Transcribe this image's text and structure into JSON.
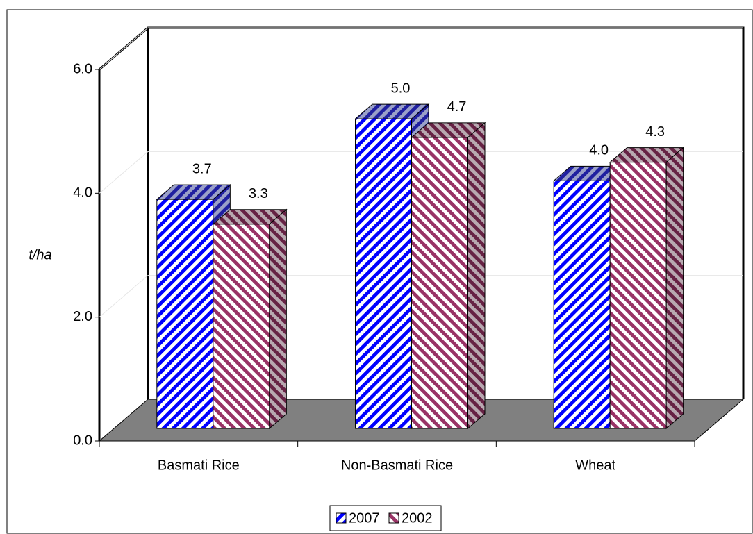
{
  "chart_data": {
    "type": "bar3d",
    "y_label": "t/ha",
    "categories": [
      "Basmati Rice",
      "Non-Basmati Rice",
      "Wheat"
    ],
    "series": [
      {
        "name": "2007",
        "color": "#0000ff",
        "values": [
          3.7,
          5.0,
          4.0
        ],
        "value_labels": [
          "3.7",
          "5.0",
          "4.0"
        ]
      },
      {
        "name": "2002",
        "color": "#993366",
        "values": [
          3.3,
          4.7,
          4.3
        ],
        "value_labels": [
          "3.3",
          "4.7",
          "4.3"
        ]
      }
    ],
    "ylim": [
      0,
      6
    ],
    "yticks": [
      {
        "value": 0,
        "label": "0.0"
      },
      {
        "value": 2,
        "label": "2.0"
      },
      {
        "value": 4,
        "label": "4.0"
      },
      {
        "value": 6,
        "label": "6.0"
      }
    ],
    "grid": true,
    "legend": "bottom"
  }
}
